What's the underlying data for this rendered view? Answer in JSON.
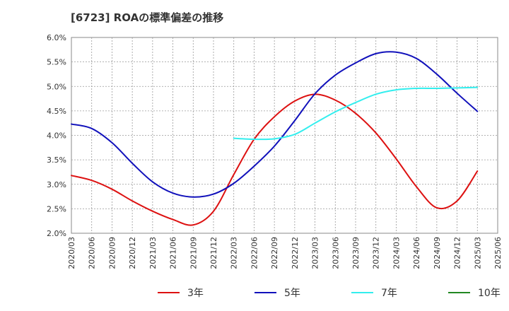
{
  "chart_data": {
    "type": "line",
    "title": "[6723]  ROAの標準偏差の推移",
    "xlabel": "",
    "ylabel": "",
    "ylim": [
      2.0,
      6.0
    ],
    "y_ticks": [
      "2.0%",
      "2.5%",
      "3.0%",
      "3.5%",
      "4.0%",
      "4.5%",
      "5.0%",
      "5.5%",
      "6.0%"
    ],
    "y_tick_values": [
      2.0,
      2.5,
      3.0,
      3.5,
      4.0,
      4.5,
      5.0,
      5.5,
      6.0
    ],
    "categories": [
      "2020/03",
      "2020/06",
      "2020/09",
      "2020/12",
      "2021/03",
      "2021/06",
      "2021/09",
      "2021/12",
      "2022/03",
      "2022/06",
      "2022/09",
      "2022/12",
      "2023/03",
      "2023/06",
      "2023/09",
      "2023/12",
      "2024/03",
      "2024/06",
      "2024/09",
      "2024/12",
      "2025/03",
      "2025/06"
    ],
    "grid": true,
    "legend_position": "bottom",
    "series": [
      {
        "name": "3年",
        "color": "#dd1111",
        "values": [
          3.18,
          3.08,
          2.9,
          2.66,
          2.45,
          2.28,
          2.17,
          2.45,
          3.2,
          3.92,
          4.38,
          4.7,
          4.84,
          4.72,
          4.45,
          4.05,
          3.52,
          2.95,
          2.52,
          2.66,
          3.27,
          null
        ]
      },
      {
        "name": "5年",
        "color": "#1111bb",
        "values": [
          4.23,
          4.14,
          3.85,
          3.43,
          3.05,
          2.82,
          2.74,
          2.8,
          3.02,
          3.37,
          3.78,
          4.3,
          4.85,
          5.23,
          5.48,
          5.67,
          5.7,
          5.57,
          5.25,
          4.86,
          4.49,
          null
        ]
      },
      {
        "name": "7年",
        "color": "#33eeee",
        "values": [
          null,
          null,
          null,
          null,
          null,
          null,
          null,
          null,
          3.94,
          3.92,
          3.93,
          4.02,
          4.25,
          4.48,
          4.67,
          4.84,
          4.93,
          4.96,
          4.96,
          4.97,
          4.98,
          null
        ]
      },
      {
        "name": "10年",
        "color": "#228822",
        "values": [
          null,
          null,
          null,
          null,
          null,
          null,
          null,
          null,
          null,
          null,
          null,
          null,
          null,
          null,
          null,
          null,
          null,
          null,
          null,
          null,
          null,
          null
        ]
      }
    ]
  }
}
